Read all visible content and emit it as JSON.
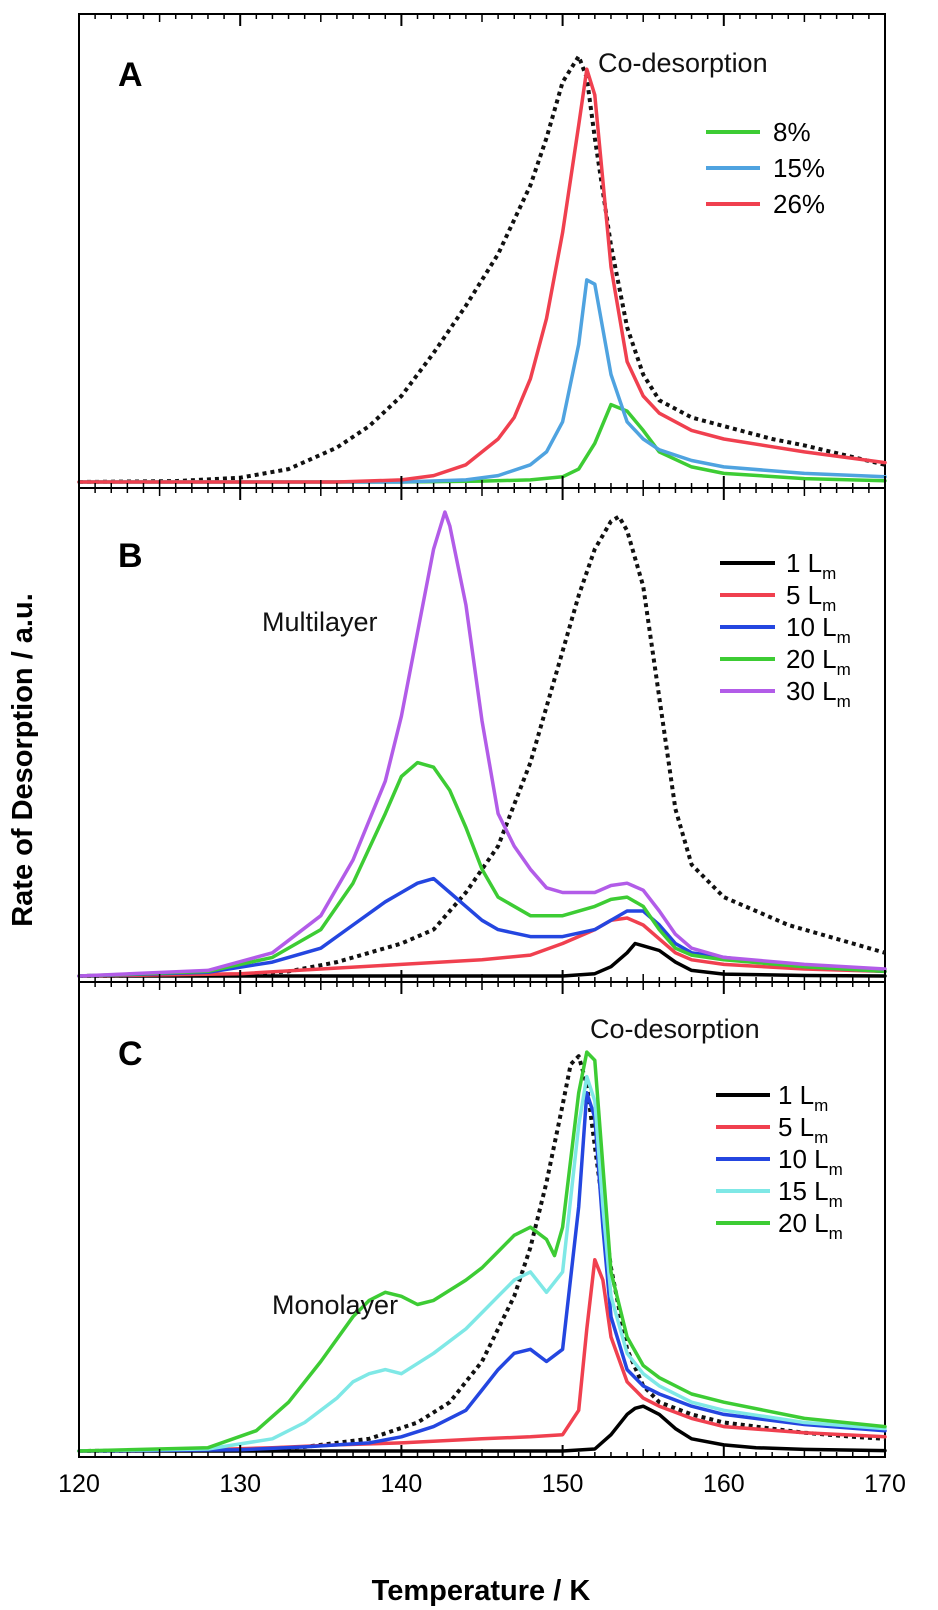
{
  "figure": {
    "ylabel": "Rate of Desorption / a.u.",
    "xlabel": "Temperature / K",
    "xlim": [
      120,
      170
    ],
    "x_ticks": [
      "120",
      "130",
      "140",
      "150",
      "160",
      "170"
    ]
  },
  "colors": {
    "green": "#3dcc34",
    "light_blue": "#4fa3e0",
    "red": "#f0404f",
    "black": "#000000",
    "blue": "#2446e0",
    "purple": "#b25ce8",
    "cyan": "#7fe8e6",
    "dotted": "#111111"
  },
  "chart_data": [
    {
      "type": "line",
      "panel": "A",
      "annotation": "Co-desorption",
      "ylim": [
        0,
        1
      ],
      "series": [
        {
          "name": "8%",
          "color": "#3dcc34",
          "style": "solid",
          "x": [
            120,
            140,
            145,
            148,
            150,
            151,
            152,
            153,
            154,
            155,
            156,
            158,
            160,
            165,
            170
          ],
          "y": [
            0,
            0,
            0.002,
            0.005,
            0.012,
            0.03,
            0.09,
            0.18,
            0.165,
            0.12,
            0.07,
            0.035,
            0.02,
            0.008,
            0.003
          ]
        },
        {
          "name": "15%",
          "color": "#4fa3e0",
          "style": "solid",
          "x": [
            120,
            140,
            144,
            146,
            148,
            149,
            150,
            151,
            151.5,
            152,
            153,
            154,
            155,
            156,
            158,
            160,
            165,
            170
          ],
          "y": [
            0,
            0,
            0.005,
            0.015,
            0.04,
            0.07,
            0.14,
            0.32,
            0.47,
            0.46,
            0.25,
            0.14,
            0.1,
            0.075,
            0.05,
            0.035,
            0.02,
            0.012
          ]
        },
        {
          "name": "26%",
          "color": "#f0404f",
          "style": "solid",
          "x": [
            120,
            136,
            140,
            142,
            144,
            146,
            147,
            148,
            149,
            150,
            151,
            151.5,
            152,
            153,
            154,
            155,
            156,
            158,
            160,
            165,
            170
          ],
          "y": [
            0,
            0,
            0.005,
            0.015,
            0.04,
            0.1,
            0.15,
            0.24,
            0.38,
            0.58,
            0.83,
            0.96,
            0.9,
            0.5,
            0.28,
            0.2,
            0.16,
            0.12,
            0.1,
            0.07,
            0.045
          ]
        },
        {
          "name": "",
          "color": "#111111",
          "style": "dotted",
          "x": [
            120,
            126,
            130,
            133,
            136,
            138,
            140,
            142,
            144,
            146,
            148,
            149,
            150,
            151,
            151.5,
            152,
            153,
            154,
            155,
            156,
            158,
            160,
            163,
            165,
            170
          ],
          "y": [
            0,
            0.002,
            0.01,
            0.03,
            0.08,
            0.13,
            0.2,
            0.3,
            0.41,
            0.53,
            0.69,
            0.8,
            0.93,
            0.99,
            0.94,
            0.8,
            0.55,
            0.36,
            0.25,
            0.19,
            0.15,
            0.13,
            0.1,
            0.085,
            0.04
          ]
        }
      ]
    },
    {
      "type": "line",
      "panel": "B",
      "annotation": "Multilayer",
      "ylim": [
        0,
        1
      ],
      "series": [
        {
          "name": "1 Lm",
          "color": "#000000",
          "style": "solid",
          "x": [
            120,
            150,
            152,
            153,
            154,
            154.5,
            155,
            156,
            157,
            158,
            160,
            165,
            170
          ],
          "y": [
            0,
            0,
            0.005,
            0.02,
            0.05,
            0.07,
            0.065,
            0.055,
            0.03,
            0.012,
            0.004,
            0.001,
            0
          ]
        },
        {
          "name": "5 Lm",
          "color": "#f0404f",
          "style": "solid",
          "x": [
            120,
            130,
            135,
            140,
            145,
            148,
            150,
            152,
            153,
            154,
            155,
            156,
            157,
            158,
            160,
            165,
            170
          ],
          "y": [
            0,
            0.005,
            0.015,
            0.025,
            0.035,
            0.045,
            0.07,
            0.1,
            0.12,
            0.125,
            0.11,
            0.08,
            0.05,
            0.035,
            0.025,
            0.015,
            0.01
          ]
        },
        {
          "name": "10 Lm",
          "color": "#2446e0",
          "style": "solid",
          "x": [
            120,
            128,
            132,
            135,
            137,
            139,
            140,
            141,
            142,
            143,
            144,
            145,
            146,
            148,
            150,
            152,
            154,
            155,
            156,
            157,
            158,
            160,
            165,
            170
          ],
          "y": [
            0,
            0.008,
            0.03,
            0.06,
            0.11,
            0.16,
            0.18,
            0.2,
            0.21,
            0.18,
            0.15,
            0.12,
            0.1,
            0.085,
            0.085,
            0.1,
            0.14,
            0.14,
            0.11,
            0.07,
            0.05,
            0.04,
            0.02,
            0.01
          ]
        },
        {
          "name": "20 Lm",
          "color": "#3dcc34",
          "style": "solid",
          "x": [
            120,
            128,
            132,
            135,
            137,
            139,
            140,
            141,
            142,
            143,
            144,
            145,
            146,
            148,
            150,
            152,
            153,
            154,
            155,
            156,
            157,
            158,
            160,
            165,
            170
          ],
          "y": [
            0,
            0.01,
            0.04,
            0.1,
            0.2,
            0.35,
            0.43,
            0.46,
            0.45,
            0.4,
            0.32,
            0.23,
            0.17,
            0.13,
            0.13,
            0.15,
            0.165,
            0.17,
            0.15,
            0.1,
            0.06,
            0.045,
            0.035,
            0.02,
            0.01
          ]
        },
        {
          "name": "30 Lm",
          "color": "#b25ce8",
          "style": "solid",
          "x": [
            120,
            128,
            132,
            135,
            137,
            139,
            140,
            141,
            142,
            142.7,
            143,
            144,
            145,
            146,
            147,
            148,
            149,
            150,
            152,
            153,
            154,
            155,
            156,
            157,
            158,
            160,
            165,
            170
          ],
          "y": [
            0,
            0.012,
            0.05,
            0.13,
            0.25,
            0.42,
            0.56,
            0.74,
            0.92,
            1.0,
            0.97,
            0.8,
            0.55,
            0.35,
            0.28,
            0.23,
            0.19,
            0.18,
            0.18,
            0.195,
            0.2,
            0.185,
            0.14,
            0.09,
            0.06,
            0.04,
            0.025,
            0.015
          ]
        },
        {
          "name": "",
          "color": "#111111",
          "style": "dotted",
          "x": [
            120,
            130,
            133,
            136,
            140,
            142,
            144,
            146,
            148,
            149,
            150,
            151,
            152,
            153,
            153.5,
            154,
            155,
            156,
            157,
            158,
            160,
            162,
            164,
            166,
            168,
            170
          ],
          "y": [
            0,
            0.003,
            0.01,
            0.03,
            0.07,
            0.1,
            0.18,
            0.28,
            0.46,
            0.58,
            0.7,
            0.82,
            0.92,
            0.98,
            0.99,
            0.96,
            0.84,
            0.6,
            0.36,
            0.24,
            0.17,
            0.14,
            0.11,
            0.09,
            0.07,
            0.05
          ]
        }
      ]
    },
    {
      "type": "line",
      "panel": "C",
      "annotations": [
        "Co-desorption",
        "Monolayer"
      ],
      "ylim": [
        0,
        1
      ],
      "series": [
        {
          "name": "1 Lm",
          "color": "#000000",
          "style": "solid",
          "x": [
            120,
            150,
            152,
            153,
            154,
            154.5,
            155,
            156,
            157,
            158,
            160,
            162,
            165,
            170
          ],
          "y": [
            0,
            0,
            0.005,
            0.04,
            0.09,
            0.105,
            0.11,
            0.09,
            0.055,
            0.03,
            0.015,
            0.008,
            0.004,
            0.001
          ]
        },
        {
          "name": "5 Lm",
          "color": "#f0404f",
          "style": "solid",
          "x": [
            120,
            128,
            132,
            136,
            140,
            145,
            148,
            150,
            151,
            151.5,
            152,
            152.5,
            153,
            154,
            155,
            156,
            158,
            160,
            165,
            170
          ],
          "y": [
            0,
            0.003,
            0.008,
            0.015,
            0.02,
            0.03,
            0.035,
            0.04,
            0.1,
            0.3,
            0.47,
            0.42,
            0.28,
            0.17,
            0.13,
            0.11,
            0.08,
            0.06,
            0.045,
            0.035
          ]
        },
        {
          "name": "10 Lm",
          "color": "#2446e0",
          "style": "solid",
          "x": [
            120,
            130,
            134,
            138,
            140,
            142,
            144,
            145,
            146,
            147,
            148,
            149,
            150,
            151,
            151.5,
            152,
            152.5,
            153,
            154,
            155,
            156,
            158,
            160,
            165,
            170
          ],
          "y": [
            0,
            0.003,
            0.01,
            0.02,
            0.035,
            0.06,
            0.1,
            0.15,
            0.2,
            0.24,
            0.25,
            0.22,
            0.25,
            0.6,
            0.88,
            0.82,
            0.55,
            0.33,
            0.2,
            0.16,
            0.14,
            0.11,
            0.09,
            0.065,
            0.05
          ]
        },
        {
          "name": "15 Lm",
          "color": "#7fe8e6",
          "style": "solid",
          "x": [
            120,
            128,
            132,
            134,
            136,
            137,
            138,
            139,
            140,
            142,
            144,
            145,
            146,
            147,
            148,
            149,
            150,
            151,
            151.5,
            152,
            152.5,
            153,
            154,
            155,
            156,
            158,
            160,
            165,
            170
          ],
          "y": [
            0,
            0.005,
            0.03,
            0.07,
            0.13,
            0.17,
            0.19,
            0.2,
            0.19,
            0.24,
            0.3,
            0.34,
            0.38,
            0.42,
            0.44,
            0.39,
            0.44,
            0.8,
            0.92,
            0.86,
            0.6,
            0.38,
            0.24,
            0.19,
            0.16,
            0.12,
            0.1,
            0.07,
            0.055
          ]
        },
        {
          "name": "20 Lm",
          "color": "#3dcc34",
          "style": "solid",
          "x": [
            120,
            128,
            131,
            133,
            135,
            137,
            138,
            139,
            140,
            141,
            142,
            144,
            145,
            146,
            147,
            148,
            149,
            149.5,
            150,
            151,
            151.5,
            152,
            152.5,
            153,
            154,
            155,
            156,
            158,
            160,
            165,
            170
          ],
          "y": [
            0,
            0.008,
            0.05,
            0.12,
            0.22,
            0.33,
            0.37,
            0.39,
            0.38,
            0.36,
            0.37,
            0.42,
            0.45,
            0.49,
            0.53,
            0.55,
            0.52,
            0.48,
            0.55,
            0.88,
            0.98,
            0.96,
            0.7,
            0.44,
            0.28,
            0.21,
            0.18,
            0.14,
            0.12,
            0.08,
            0.06
          ]
        },
        {
          "name": "",
          "color": "#111111",
          "style": "dotted",
          "x": [
            120,
            130,
            134,
            138,
            141,
            143,
            145,
            147,
            148,
            149,
            150,
            150.5,
            151,
            151.5,
            152,
            153,
            154,
            155,
            156,
            158,
            160,
            162,
            165,
            168,
            170
          ],
          "y": [
            0,
            0.003,
            0.01,
            0.03,
            0.07,
            0.12,
            0.22,
            0.38,
            0.5,
            0.66,
            0.85,
            0.95,
            0.97,
            0.9,
            0.75,
            0.45,
            0.25,
            0.16,
            0.12,
            0.09,
            0.07,
            0.06,
            0.045,
            0.035,
            0.03
          ]
        }
      ]
    }
  ],
  "panels": [
    {
      "letter": "A",
      "annotation": "Co-desorption",
      "legend": [
        {
          "text": "8%",
          "sub": "",
          "color": "#3dcc34"
        },
        {
          "text": "15%",
          "sub": "",
          "color": "#4fa3e0"
        },
        {
          "text": "26%",
          "sub": "",
          "color": "#f0404f"
        }
      ]
    },
    {
      "letter": "B",
      "annotation": "Multilayer",
      "legend": [
        {
          "text": "1 L",
          "sub": "m",
          "color": "#000000"
        },
        {
          "text": "5 L",
          "sub": "m",
          "color": "#f0404f"
        },
        {
          "text": "10 L",
          "sub": "m",
          "color": "#2446e0"
        },
        {
          "text": "20 L",
          "sub": "m",
          "color": "#3dcc34"
        },
        {
          "text": " 30 L",
          "sub": "m",
          "color": "#b25ce8"
        }
      ]
    },
    {
      "letter": "C",
      "annotation": "Co-desorption",
      "annotation2": "Monolayer",
      "legend": [
        {
          "text": "1 L",
          "sub": "m",
          "color": "#000000"
        },
        {
          "text": "5 L",
          "sub": "m",
          "color": "#f0404f"
        },
        {
          "text": "10 L",
          "sub": "m",
          "color": "#2446e0"
        },
        {
          "text": "15 L",
          "sub": "m",
          "color": "#7fe8e6"
        },
        {
          "text": "20 L",
          "sub": "m",
          "color": "#3dcc34"
        }
      ]
    }
  ]
}
